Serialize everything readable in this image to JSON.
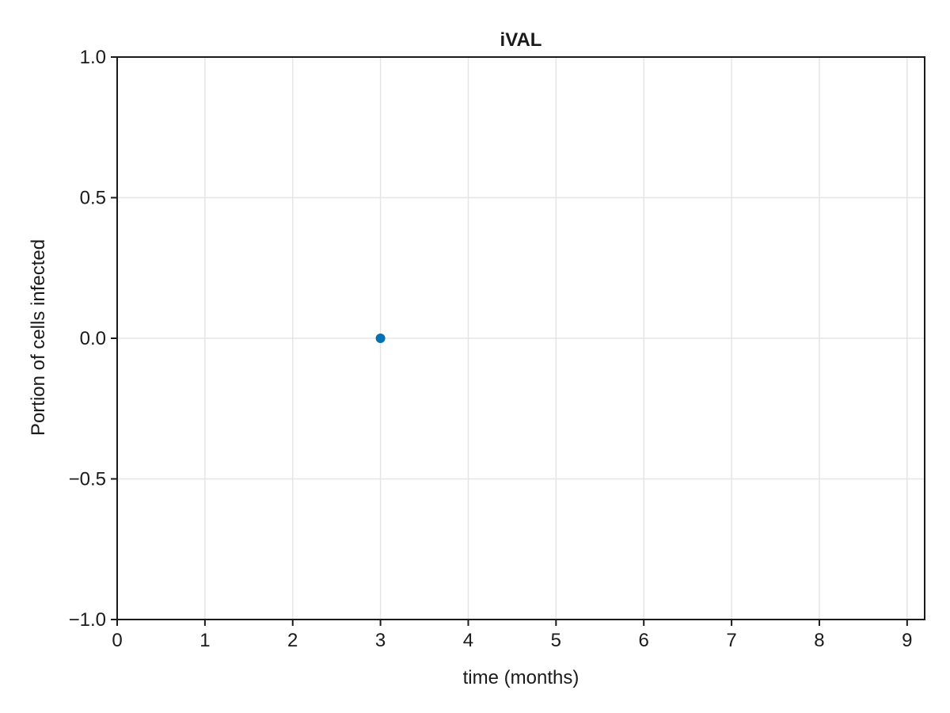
{
  "chart_data": {
    "type": "scatter",
    "title": "iVAL",
    "xlabel": "time (months)",
    "ylabel": "Portion of cells infected",
    "xlim": [
      0,
      9.2
    ],
    "ylim": [
      -1.0,
      1.0
    ],
    "xticks": [
      0,
      1,
      2,
      3,
      4,
      5,
      6,
      7,
      8,
      9
    ],
    "xtick_labels": [
      "0",
      "1",
      "2",
      "3",
      "4",
      "5",
      "6",
      "7",
      "8",
      "9"
    ],
    "yticks": [
      -1.0,
      -0.5,
      0.0,
      0.5,
      1.0
    ],
    "ytick_labels": [
      "−1.0",
      "−0.5",
      "0.0",
      "0.5",
      "1.0"
    ],
    "grid": true,
    "legend": "none",
    "series": [
      {
        "color": "#0072b2",
        "points": [
          {
            "x": 3,
            "y": 0.0
          }
        ]
      }
    ]
  }
}
